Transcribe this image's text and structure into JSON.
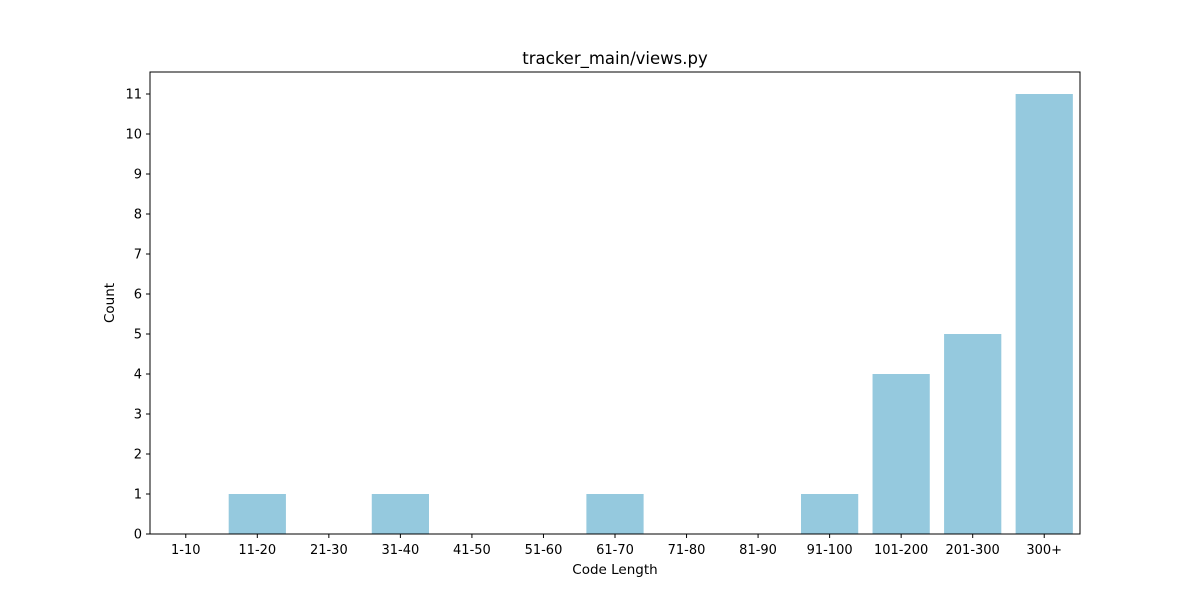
{
  "chart_data": {
    "type": "bar",
    "title": "tracker_main/views.py",
    "xlabel": "Code Length",
    "ylabel": "Count",
    "categories": [
      "1-10",
      "11-20",
      "21-30",
      "31-40",
      "41-50",
      "51-60",
      "61-70",
      "71-80",
      "81-90",
      "91-100",
      "101-200",
      "201-300",
      "300+"
    ],
    "values": [
      0,
      1,
      0,
      1,
      0,
      0,
      1,
      0,
      0,
      1,
      4,
      5,
      11
    ],
    "yticks": [
      "0",
      "1",
      "2",
      "3",
      "4",
      "5",
      "6",
      "7",
      "8",
      "9",
      "10",
      "11"
    ],
    "ylim": [
      0,
      11.55
    ],
    "grid": false,
    "legend": "none",
    "colors": {
      "bar": "#95c9de",
      "axes": "#000000",
      "background": "#ffffff"
    }
  }
}
